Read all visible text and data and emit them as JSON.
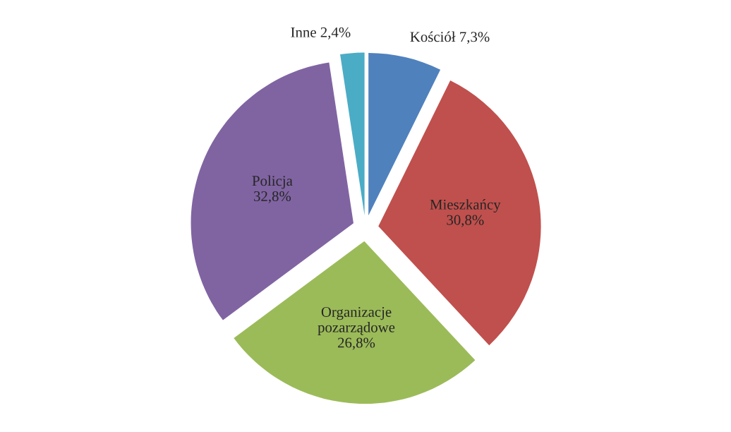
{
  "chart_data": {
    "type": "pie",
    "categories": [
      "Kościół",
      "Mieszkańcy",
      "Organizacje pozarządowe",
      "Policja",
      "Inne"
    ],
    "values": [
      7.3,
      30.8,
      26.8,
      32.8,
      2.4
    ],
    "value_labels": [
      "7,3%",
      "30,8%",
      "26,8%",
      "32,8%",
      "2,4%"
    ],
    "colors": [
      "#4f81bd",
      "#c0504d",
      "#9bbb59",
      "#8064a2",
      "#4bacc6"
    ]
  }
}
